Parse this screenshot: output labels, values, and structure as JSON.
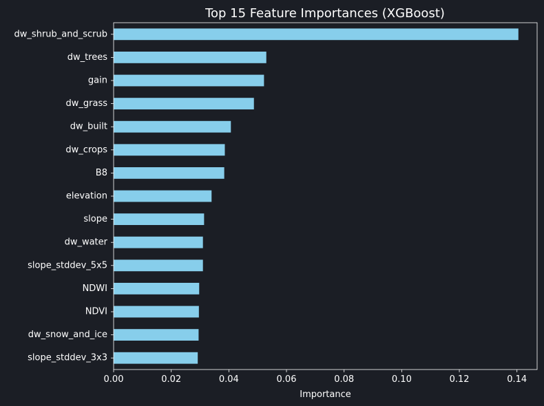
{
  "chart_data": {
    "type": "bar",
    "orientation": "horizontal",
    "title": "Top 15 Feature Importances (XGBoost)",
    "xlabel": "Importance",
    "ylabel": "",
    "xlim": [
      0,
      0.147
    ],
    "x_ticks": [
      0.0,
      0.02,
      0.04,
      0.06,
      0.08,
      0.1,
      0.12,
      0.14
    ],
    "x_tick_labels": [
      "0.00",
      "0.02",
      "0.04",
      "0.06",
      "0.08",
      "0.10",
      "0.12",
      "0.14"
    ],
    "grid": false,
    "legend": "none",
    "categories": [
      "dw_shrub_and_scrub",
      "dw_trees",
      "gain",
      "dw_grass",
      "dw_built",
      "dw_crops",
      "B8",
      "elevation",
      "slope",
      "dw_water",
      "slope_stddev_5x5",
      "NDWI",
      "NDVI",
      "dw_snow_and_ice",
      "slope_stddev_3x3"
    ],
    "values": [
      0.1405,
      0.053,
      0.0522,
      0.0487,
      0.0407,
      0.0386,
      0.0384,
      0.034,
      0.0314,
      0.031,
      0.031,
      0.0297,
      0.0296,
      0.0295,
      0.0292
    ],
    "colors": {
      "background": "#1b1e25",
      "bar": "#87ceeb",
      "axis": "#ffffff",
      "text": "#ffffff"
    }
  }
}
